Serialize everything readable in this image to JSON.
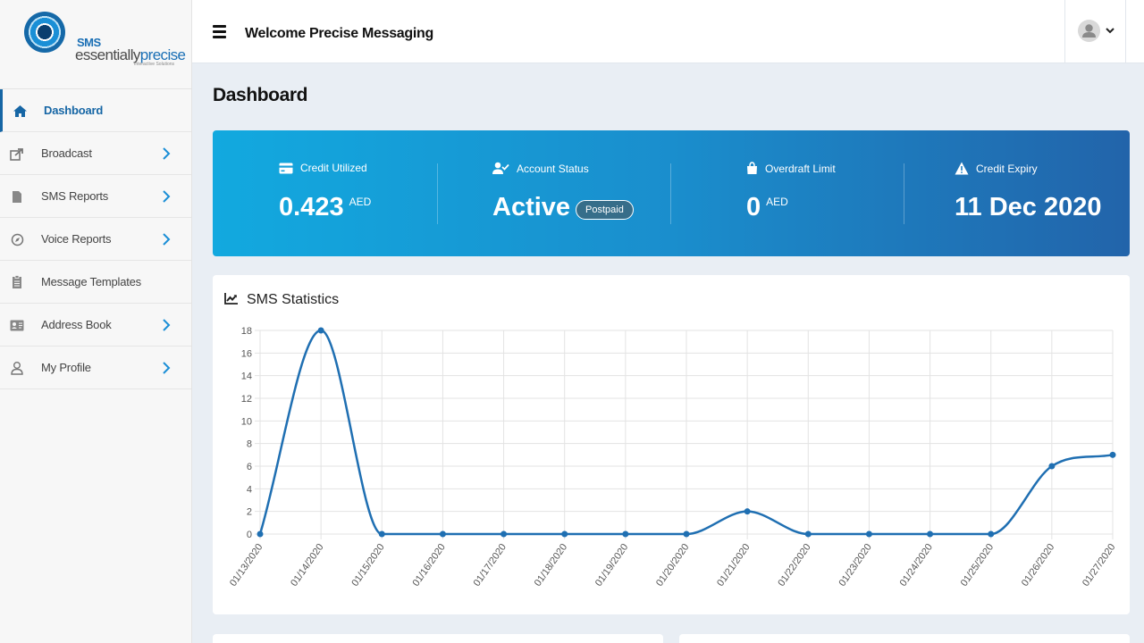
{
  "brand": {
    "sms": "SMS",
    "name_part1": "essentially",
    "name_part2": "precise",
    "tagline": "Interactive Solutions"
  },
  "topbar": {
    "welcome": "Welcome Precise Messaging"
  },
  "sidebar": {
    "items": [
      {
        "label": "Dashboard",
        "icon": "home-icon",
        "active": true,
        "has_chevron": false
      },
      {
        "label": "Broadcast",
        "icon": "share-icon",
        "active": false,
        "has_chevron": true
      },
      {
        "label": "SMS Reports",
        "icon": "file-icon",
        "active": false,
        "has_chevron": true
      },
      {
        "label": "Voice Reports",
        "icon": "compass-icon",
        "active": false,
        "has_chevron": true
      },
      {
        "label": "Message Templates",
        "icon": "clipboard-icon",
        "active": false,
        "has_chevron": false
      },
      {
        "label": "Address Book",
        "icon": "id-card-icon",
        "active": false,
        "has_chevron": true
      },
      {
        "label": "My Profile",
        "icon": "user-icon",
        "active": false,
        "has_chevron": true
      }
    ]
  },
  "page": {
    "title": "Dashboard"
  },
  "stats": {
    "credit_utilized": {
      "label": "Credit Utilized",
      "value": "0.423",
      "unit": "AED"
    },
    "account_status": {
      "label": "Account Status",
      "value": "Active",
      "badge": "Postpaid"
    },
    "overdraft_limit": {
      "label": "Overdraft Limit",
      "value": "0",
      "unit": "AED"
    },
    "credit_expiry": {
      "label": "Credit Expiry",
      "value": "11 Dec 2020"
    }
  },
  "colors": {
    "accent": "#1666a5",
    "banner_start": "#12a9df",
    "banner_end": "#2264aa",
    "line": "#1f6fb2"
  },
  "chart_card": {
    "title": "SMS Statistics"
  },
  "chart_data": {
    "type": "line",
    "x": [
      "01/13/2020",
      "01/14/2020",
      "01/15/2020",
      "01/16/2020",
      "01/17/2020",
      "01/18/2020",
      "01/19/2020",
      "01/20/2020",
      "01/21/2020",
      "01/22/2020",
      "01/23/2020",
      "01/24/2020",
      "01/25/2020",
      "01/26/2020",
      "01/27/2020"
    ],
    "series": [
      {
        "values": [
          0,
          18,
          0,
          0,
          0,
          0,
          0,
          0,
          2,
          0,
          0,
          0,
          0,
          6,
          7
        ]
      }
    ],
    "ylim": [
      0,
      18
    ],
    "yticks": [
      0,
      2,
      4,
      6,
      8,
      10,
      12,
      14,
      16,
      18
    ],
    "grid": true,
    "title": "",
    "xlabel": "",
    "ylabel": ""
  }
}
